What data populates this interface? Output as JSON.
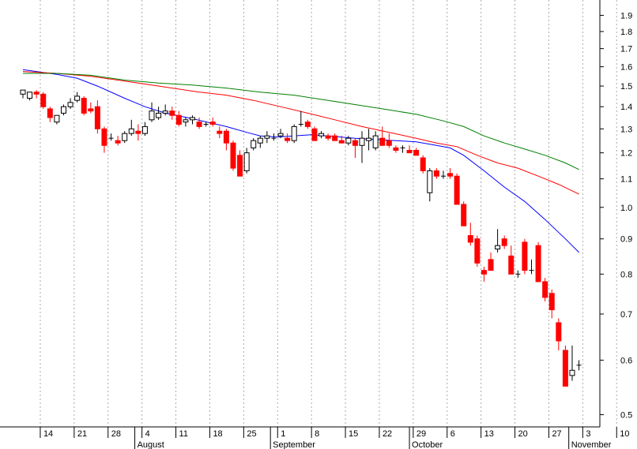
{
  "chart_data": {
    "type": "candlestick",
    "title": "",
    "xlabel": "",
    "ylabel": "",
    "y_scale": "log",
    "ylim": [
      0.48,
      2.0
    ],
    "grid": {
      "vertical": true,
      "style": "dotted"
    },
    "y_ticks": [
      {
        "value": 1.9,
        "label": "1.9"
      },
      {
        "value": 1.8,
        "label": "1.8"
      },
      {
        "value": 1.7,
        "label": "1.7"
      },
      {
        "value": 1.6,
        "label": "1.6"
      },
      {
        "value": 1.5,
        "label": "1.5"
      },
      {
        "value": 1.4,
        "label": "1.4"
      },
      {
        "value": 1.3,
        "label": "1.3"
      },
      {
        "value": 1.2,
        "label": "1.2"
      },
      {
        "value": 1.1,
        "label": "1.1"
      },
      {
        "value": 1.0,
        "label": "1.0"
      },
      {
        "value": 0.9,
        "label": "0.9"
      },
      {
        "value": 0.8,
        "label": "0.8"
      },
      {
        "value": 0.7,
        "label": "0.7"
      },
      {
        "value": 0.6,
        "label": "0.6"
      },
      {
        "value": 0.5,
        "label": "0.5"
      }
    ],
    "x_ticks": [
      "14",
      "21",
      "28",
      "4",
      "11",
      "18",
      "25",
      "1",
      "8",
      "15",
      "22",
      "29",
      "6",
      "13",
      "20",
      "27",
      "3",
      "10"
    ],
    "x_tick_weeks": [
      1,
      2,
      3,
      4,
      5,
      6,
      7,
      8,
      9,
      10,
      11,
      12,
      13,
      14,
      15,
      16,
      17,
      18
    ],
    "months": [
      {
        "label": "August",
        "week": 3.8
      },
      {
        "label": "September",
        "week": 7.8
      },
      {
        "label": "October",
        "week": 11.9
      },
      {
        "label": "November",
        "week": 16.6
      }
    ],
    "candles": [
      [
        0.0,
        1.46,
        1.48,
        1.44,
        1.48
      ],
      [
        0.2,
        1.44,
        1.47,
        1.43,
        1.47
      ],
      [
        0.4,
        1.47,
        1.48,
        1.44,
        1.46
      ],
      [
        0.6,
        1.46,
        1.47,
        1.39,
        1.4
      ],
      [
        0.8,
        1.39,
        1.4,
        1.33,
        1.35
      ],
      [
        1.0,
        1.33,
        1.36,
        1.32,
        1.36
      ],
      [
        1.2,
        1.37,
        1.41,
        1.36,
        1.4
      ],
      [
        1.4,
        1.4,
        1.44,
        1.39,
        1.42
      ],
      [
        1.6,
        1.43,
        1.47,
        1.42,
        1.45
      ],
      [
        1.8,
        1.44,
        1.45,
        1.36,
        1.37
      ],
      [
        2.0,
        1.39,
        1.42,
        1.37,
        1.38
      ],
      [
        2.2,
        1.4,
        1.43,
        1.28,
        1.3
      ],
      [
        2.4,
        1.3,
        1.31,
        1.2,
        1.23
      ],
      [
        2.6,
        1.26,
        1.28,
        1.25,
        1.26
      ],
      [
        2.8,
        1.25,
        1.27,
        1.23,
        1.24
      ],
      [
        3.0,
        1.25,
        1.29,
        1.24,
        1.28
      ],
      [
        3.2,
        1.28,
        1.34,
        1.27,
        1.3
      ],
      [
        3.4,
        1.29,
        1.32,
        1.25,
        1.28
      ],
      [
        3.6,
        1.28,
        1.33,
        1.27,
        1.31
      ],
      [
        3.8,
        1.34,
        1.42,
        1.33,
        1.38
      ],
      [
        4.0,
        1.35,
        1.4,
        1.34,
        1.37
      ],
      [
        4.2,
        1.37,
        1.41,
        1.36,
        1.38
      ],
      [
        4.4,
        1.38,
        1.4,
        1.34,
        1.36
      ],
      [
        4.6,
        1.36,
        1.38,
        1.31,
        1.32
      ],
      [
        4.8,
        1.33,
        1.35,
        1.31,
        1.34
      ],
      [
        5.0,
        1.34,
        1.36,
        1.32,
        1.35
      ],
      [
        5.2,
        1.33,
        1.35,
        1.3,
        1.31
      ],
      [
        5.4,
        1.32,
        1.33,
        1.31,
        1.32
      ],
      [
        5.6,
        1.33,
        1.35,
        1.31,
        1.32
      ],
      [
        5.8,
        1.29,
        1.31,
        1.26,
        1.28
      ],
      [
        6.0,
        1.29,
        1.3,
        1.21,
        1.24
      ],
      [
        6.2,
        1.24,
        1.25,
        1.13,
        1.14
      ],
      [
        6.4,
        1.19,
        1.21,
        1.11,
        1.11
      ],
      [
        6.6,
        1.13,
        1.22,
        1.12,
        1.2
      ],
      [
        6.8,
        1.22,
        1.26,
        1.21,
        1.25
      ],
      [
        7.0,
        1.24,
        1.27,
        1.22,
        1.26
      ],
      [
        7.2,
        1.26,
        1.29,
        1.24,
        1.27
      ],
      [
        7.4,
        1.26,
        1.28,
        1.25,
        1.26
      ],
      [
        7.6,
        1.27,
        1.3,
        1.26,
        1.28
      ],
      [
        7.8,
        1.26,
        1.28,
        1.24,
        1.25
      ],
      [
        8.0,
        1.25,
        1.32,
        1.24,
        1.31
      ],
      [
        8.2,
        1.32,
        1.38,
        1.31,
        1.32
      ],
      [
        8.4,
        1.33,
        1.34,
        1.3,
        1.31
      ],
      [
        8.6,
        1.3,
        1.31,
        1.25,
        1.25
      ],
      [
        8.8,
        1.27,
        1.29,
        1.26,
        1.28
      ],
      [
        9.0,
        1.27,
        1.28,
        1.25,
        1.26
      ],
      [
        9.2,
        1.27,
        1.28,
        1.25,
        1.25
      ],
      [
        9.4,
        1.25,
        1.27,
        1.24,
        1.24
      ],
      [
        9.6,
        1.24,
        1.27,
        1.23,
        1.26
      ],
      [
        9.8,
        1.25,
        1.26,
        1.18,
        1.23
      ],
      [
        10.0,
        1.23,
        1.29,
        1.16,
        1.26
      ],
      [
        10.2,
        1.25,
        1.3,
        1.21,
        1.26
      ],
      [
        10.4,
        1.22,
        1.29,
        1.21,
        1.27
      ],
      [
        10.6,
        1.26,
        1.31,
        1.23,
        1.23
      ],
      [
        10.8,
        1.25,
        1.28,
        1.22,
        1.23
      ],
      [
        11.0,
        1.22,
        1.23,
        1.2,
        1.21
      ],
      [
        11.2,
        1.22,
        1.23,
        1.2,
        1.22
      ],
      [
        11.4,
        1.21,
        1.23,
        1.2,
        1.2
      ],
      [
        11.6,
        1.21,
        1.22,
        1.19,
        1.19
      ],
      [
        11.8,
        1.18,
        1.19,
        1.12,
        1.13
      ],
      [
        12.0,
        1.05,
        1.14,
        1.02,
        1.13
      ],
      [
        12.2,
        1.13,
        1.14,
        1.1,
        1.11
      ],
      [
        12.4,
        1.11,
        1.13,
        1.1,
        1.11
      ],
      [
        12.6,
        1.12,
        1.14,
        1.1,
        1.11
      ],
      [
        12.8,
        1.11,
        1.12,
        1.01,
        1.01
      ],
      [
        13.0,
        1.01,
        1.02,
        0.94,
        0.94
      ],
      [
        13.2,
        0.91,
        0.95,
        0.88,
        0.89
      ],
      [
        13.4,
        0.9,
        0.91,
        0.82,
        0.83
      ],
      [
        13.6,
        0.81,
        0.82,
        0.78,
        0.8
      ],
      [
        13.8,
        0.84,
        0.86,
        0.81,
        0.81
      ],
      [
        14.0,
        0.87,
        0.93,
        0.86,
        0.88
      ],
      [
        14.2,
        0.9,
        0.91,
        0.87,
        0.88
      ],
      [
        14.4,
        0.85,
        0.88,
        0.8,
        0.8
      ],
      [
        14.6,
        0.8,
        0.81,
        0.79,
        0.8
      ],
      [
        14.8,
        0.89,
        0.9,
        0.8,
        0.81
      ],
      [
        15.0,
        0.81,
        0.84,
        0.8,
        0.81
      ],
      [
        15.2,
        0.88,
        0.89,
        0.78,
        0.78
      ],
      [
        15.4,
        0.78,
        0.79,
        0.73,
        0.74
      ],
      [
        15.6,
        0.75,
        0.76,
        0.69,
        0.71
      ],
      [
        15.8,
        0.68,
        0.69,
        0.62,
        0.64
      ],
      [
        16.0,
        0.62,
        0.63,
        0.55,
        0.55
      ],
      [
        16.2,
        0.57,
        0.63,
        0.56,
        0.58
      ],
      [
        16.4,
        0.59,
        0.6,
        0.58,
        0.59
      ]
    ],
    "colors": {
      "up_fill": "#ffffff",
      "up_stroke": "#000000",
      "down_fill": "#ff0000",
      "down_stroke": "#ff0000",
      "neutral": "#000000",
      "grid": "#aaaaaa"
    },
    "series": [
      {
        "color": "#0000ff",
        "points": [
          [
            0,
            1.585
          ],
          [
            1,
            1.56
          ],
          [
            1.6,
            1.54
          ],
          [
            2.2,
            1.5
          ],
          [
            3.0,
            1.44
          ],
          [
            3.6,
            1.4
          ],
          [
            4.2,
            1.37
          ],
          [
            5.0,
            1.345
          ],
          [
            6.0,
            1.31
          ],
          [
            6.6,
            1.285
          ],
          [
            7.0,
            1.27
          ],
          [
            7.5,
            1.265
          ],
          [
            8.0,
            1.27
          ],
          [
            8.5,
            1.275
          ],
          [
            9.0,
            1.27
          ],
          [
            9.8,
            1.26
          ],
          [
            10.4,
            1.255
          ],
          [
            11.0,
            1.25
          ],
          [
            11.6,
            1.245
          ],
          [
            12.0,
            1.235
          ],
          [
            12.6,
            1.22
          ],
          [
            13.0,
            1.19
          ],
          [
            13.6,
            1.13
          ],
          [
            14.2,
            1.07
          ],
          [
            14.8,
            1.02
          ],
          [
            15.4,
            0.96
          ],
          [
            16.0,
            0.9
          ],
          [
            16.4,
            0.86
          ]
        ]
      },
      {
        "color": "#ff0000",
        "points": [
          [
            0,
            1.575
          ],
          [
            1,
            1.565
          ],
          [
            2,
            1.55
          ],
          [
            2.8,
            1.53
          ],
          [
            3.6,
            1.51
          ],
          [
            4.4,
            1.49
          ],
          [
            5.2,
            1.47
          ],
          [
            6.0,
            1.455
          ],
          [
            6.8,
            1.43
          ],
          [
            7.6,
            1.4
          ],
          [
            8.4,
            1.37
          ],
          [
            9.2,
            1.34
          ],
          [
            10.0,
            1.31
          ],
          [
            10.8,
            1.285
          ],
          [
            11.6,
            1.26
          ],
          [
            12.2,
            1.24
          ],
          [
            12.8,
            1.225
          ],
          [
            13.4,
            1.19
          ],
          [
            14.0,
            1.16
          ],
          [
            14.6,
            1.14
          ],
          [
            15.2,
            1.11
          ],
          [
            15.8,
            1.08
          ],
          [
            16.4,
            1.045
          ]
        ]
      },
      {
        "color": "#008000",
        "points": [
          [
            0,
            1.565
          ],
          [
            1,
            1.565
          ],
          [
            2,
            1.555
          ],
          [
            3,
            1.53
          ],
          [
            4,
            1.515
          ],
          [
            5,
            1.505
          ],
          [
            6,
            1.49
          ],
          [
            7,
            1.47
          ],
          [
            8,
            1.455
          ],
          [
            9,
            1.43
          ],
          [
            10,
            1.405
          ],
          [
            10.8,
            1.385
          ],
          [
            11.6,
            1.365
          ],
          [
            12.4,
            1.335
          ],
          [
            13.0,
            1.31
          ],
          [
            13.6,
            1.27
          ],
          [
            14.2,
            1.24
          ],
          [
            14.8,
            1.215
          ],
          [
            15.4,
            1.19
          ],
          [
            16.0,
            1.16
          ],
          [
            16.4,
            1.135
          ]
        ]
      }
    ]
  }
}
